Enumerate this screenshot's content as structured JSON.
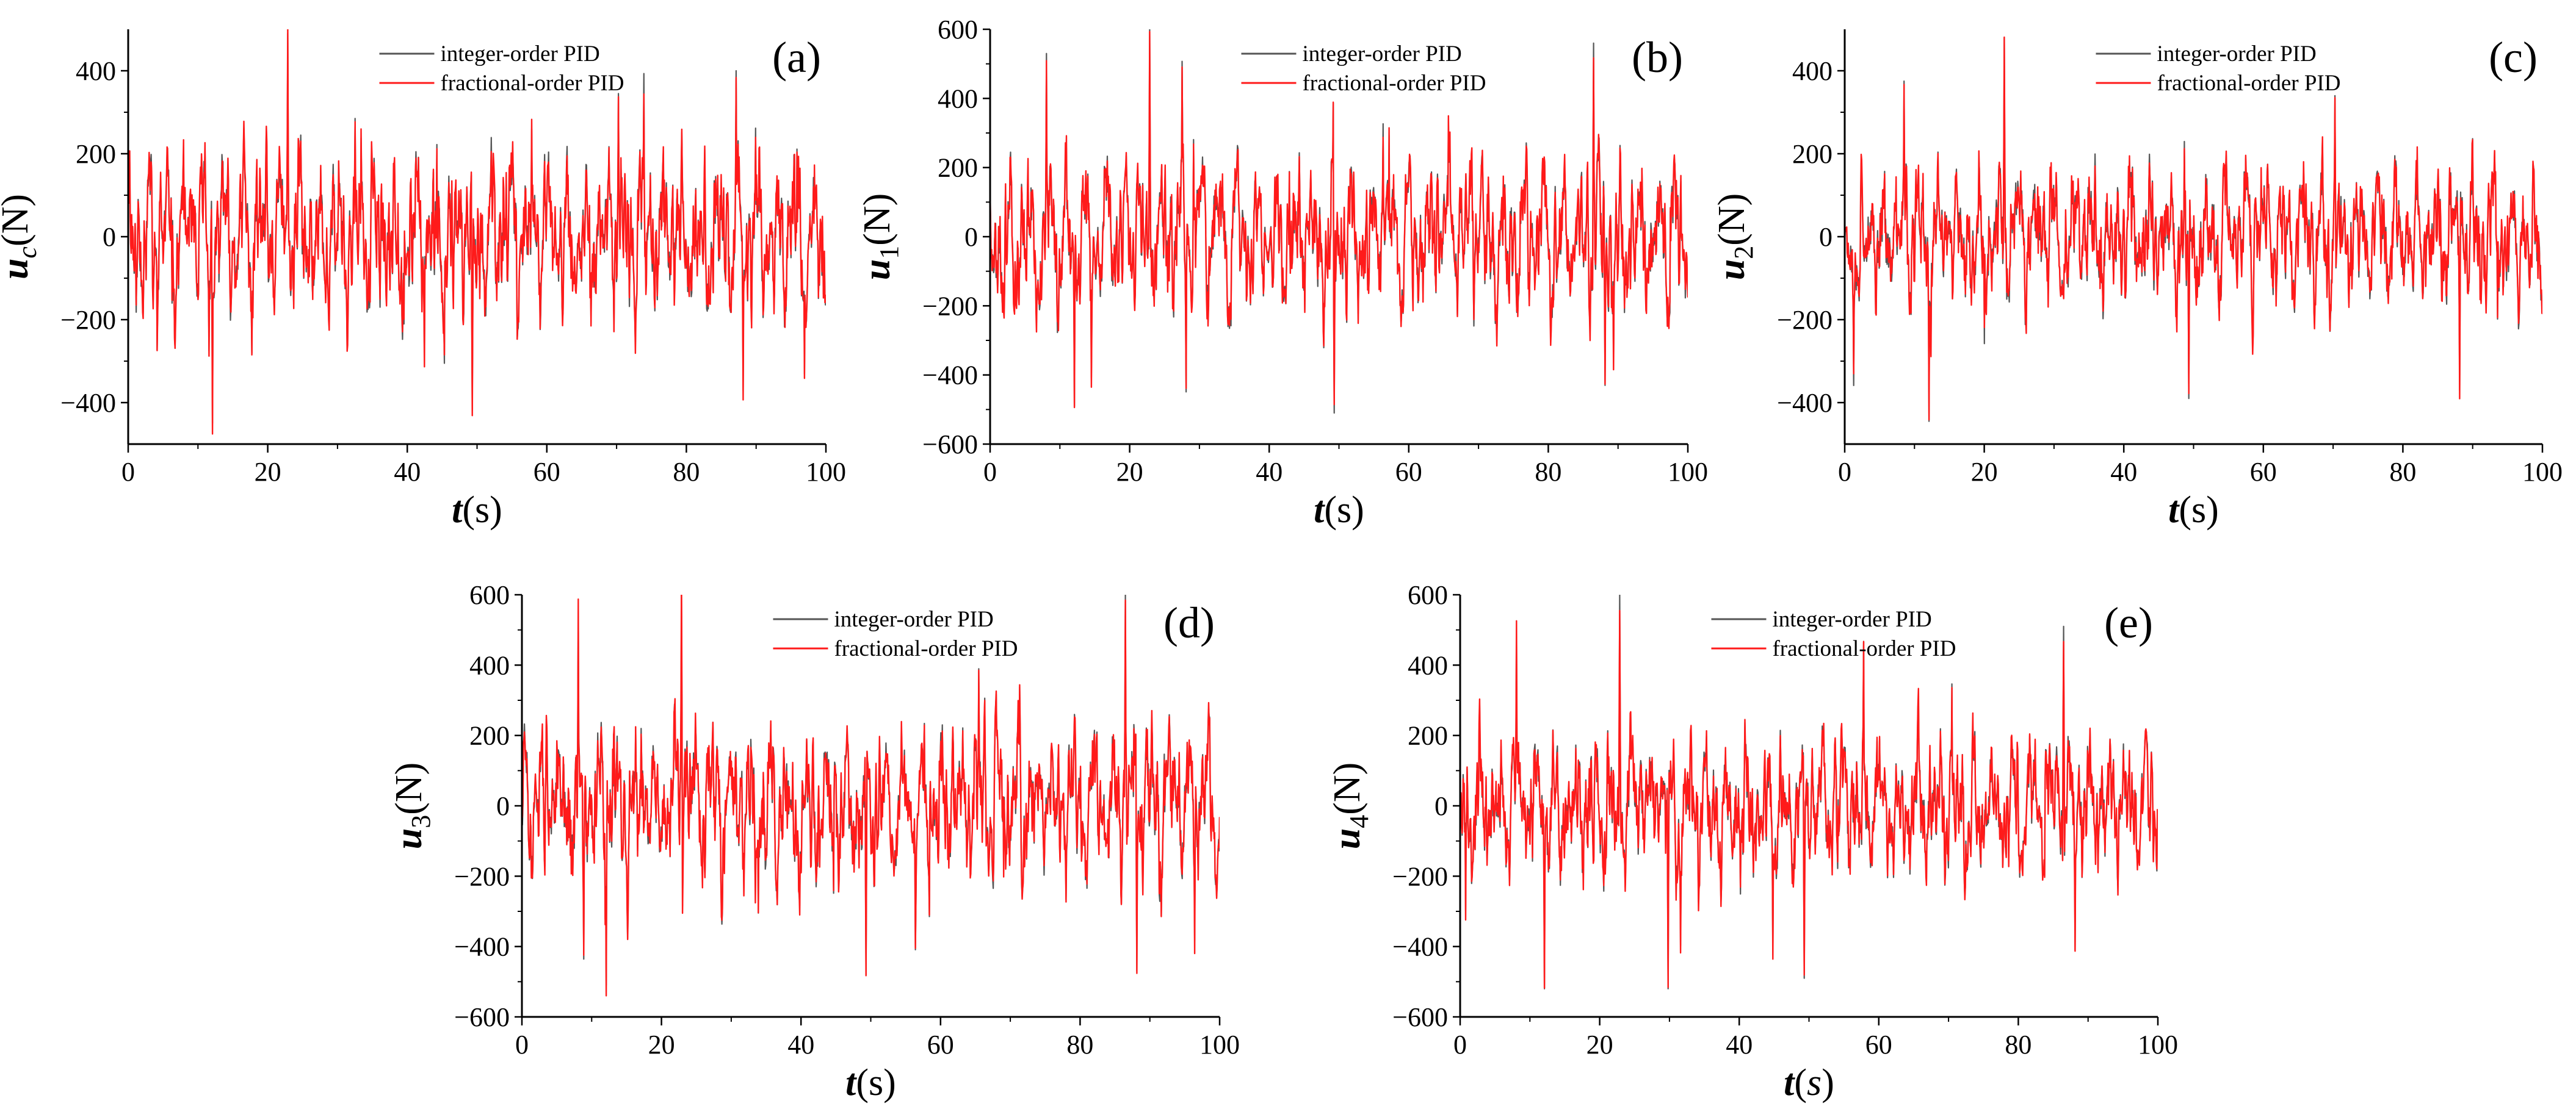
{
  "figure": {
    "colors": {
      "integer": "#555555",
      "fractional": "#ff1a1a",
      "axis": "#000000"
    },
    "legend": {
      "integer": "integer-order PID",
      "fractional": "fractional-order PID"
    }
  },
  "chart_data": [
    {
      "type": "line",
      "panel": "(a)",
      "ylabel_var": "u",
      "ylabel_sub": "c",
      "ylabel_unit": "(N)",
      "xlabel_var": "t",
      "xlabel_unit": "(s)",
      "xlim": [
        0,
        100
      ],
      "ylim": [
        -500,
        500
      ],
      "xticks": [
        0,
        20,
        40,
        60,
        80,
        100
      ],
      "yticks": [
        -400,
        -200,
        0,
        200,
        400
      ],
      "legend_position": "top-center",
      "seed": 11,
      "amplitude": 150,
      "series": [
        {
          "name": "integer-order PID",
          "color": "#555555"
        },
        {
          "name": "fractional-order PID",
          "color": "#ff1a1a"
        }
      ],
      "key_points": [
        [
          0.2,
          180
        ],
        [
          12.1,
          -450
        ],
        [
          22.9,
          490
        ],
        [
          32.5,
          285
        ],
        [
          49.3,
          -420
        ],
        [
          70.3,
          345
        ],
        [
          87.1,
          400
        ],
        [
          88.1,
          -370
        ]
      ]
    },
    {
      "type": "line",
      "panel": "(b)",
      "ylabel_var": "u",
      "ylabel_sub": "1",
      "ylabel_unit": "(N)",
      "xlabel_var": "t",
      "xlabel_unit": "(s)",
      "xlim": [
        0,
        100
      ],
      "ylim": [
        -600,
        600
      ],
      "xticks": [
        0,
        20,
        40,
        60,
        80,
        100
      ],
      "yticks": [
        -600,
        -400,
        -200,
        0,
        200,
        400,
        600
      ],
      "legend_position": "top-center",
      "seed": 23,
      "amplitude": 170,
      "series": [
        {
          "name": "integer-order PID",
          "color": "#555555"
        },
        {
          "name": "fractional-order PID",
          "color": "#ff1a1a"
        }
      ],
      "key_points": [
        [
          8.1,
          530
        ],
        [
          12.1,
          -490
        ],
        [
          22.9,
          600
        ],
        [
          49.3,
          -510
        ],
        [
          86.5,
          560
        ],
        [
          88.1,
          -430
        ]
      ]
    },
    {
      "type": "line",
      "panel": "(c)",
      "ylabel_var": "u",
      "ylabel_sub": "2",
      "ylabel_unit": "(N)",
      "xlabel_var": "t",
      "xlabel_unit": "(s)",
      "xlim": [
        0,
        100
      ],
      "ylim": [
        -500,
        500
      ],
      "xticks": [
        0,
        20,
        40,
        60,
        80,
        100
      ],
      "yticks": [
        -400,
        -200,
        0,
        200,
        400
      ],
      "legend_position": "top-center",
      "seed": 37,
      "amplitude": 130,
      "series": [
        {
          "name": "integer-order PID",
          "color": "#555555"
        },
        {
          "name": "fractional-order PID",
          "color": "#ff1a1a"
        }
      ],
      "key_points": [
        [
          8.5,
          375
        ],
        [
          12.1,
          -445
        ],
        [
          22.9,
          480
        ],
        [
          49.3,
          -390
        ],
        [
          70.3,
          340
        ],
        [
          88.1,
          -370
        ]
      ]
    },
    {
      "type": "line",
      "panel": "(d)",
      "ylabel_var": "u",
      "ylabel_sub": "3",
      "ylabel_unit": "(N)",
      "xlabel_var": "t",
      "xlabel_unit": "(s)",
      "xlim": [
        0,
        100
      ],
      "ylim": [
        -600,
        600
      ],
      "xticks": [
        0,
        20,
        40,
        60,
        80,
        100
      ],
      "yticks": [
        -600,
        -400,
        -200,
        0,
        200,
        400,
        600
      ],
      "legend_position": "top-center",
      "seed": 51,
      "amplitude": 175,
      "series": [
        {
          "name": "integer-order PID",
          "color": "#555555"
        },
        {
          "name": "fractional-order PID",
          "color": "#ff1a1a"
        }
      ],
      "key_points": [
        [
          8.1,
          550
        ],
        [
          12.1,
          -510
        ],
        [
          22.9,
          600
        ],
        [
          49.3,
          -480
        ],
        [
          86.5,
          600
        ],
        [
          88.1,
          -470
        ]
      ]
    },
    {
      "type": "line",
      "panel": "(e)",
      "ylabel_var": "u",
      "ylabel_sub": "4",
      "ylabel_unit": "(N)",
      "xlabel_var": "t",
      "xlabel_unit": "(s)",
      "xlim": [
        0,
        100
      ],
      "ylim": [
        -600,
        600
      ],
      "xticks": [
        0,
        20,
        40,
        60,
        80,
        100
      ],
      "yticks": [
        -600,
        -400,
        -200,
        0,
        200,
        400,
        600
      ],
      "legend_position": "top-center",
      "italic_s": true,
      "seed": 67,
      "amplitude": 150,
      "series": [
        {
          "name": "integer-order PID",
          "color": "#555555"
        },
        {
          "name": "fractional-order PID",
          "color": "#ff1a1a"
        }
      ],
      "key_points": [
        [
          8.1,
          500
        ],
        [
          12.1,
          -520
        ],
        [
          22.9,
          600
        ],
        [
          29.8,
          -520
        ],
        [
          49.3,
          -490
        ],
        [
          86.5,
          510
        ],
        [
          88.1,
          -410
        ]
      ]
    }
  ]
}
